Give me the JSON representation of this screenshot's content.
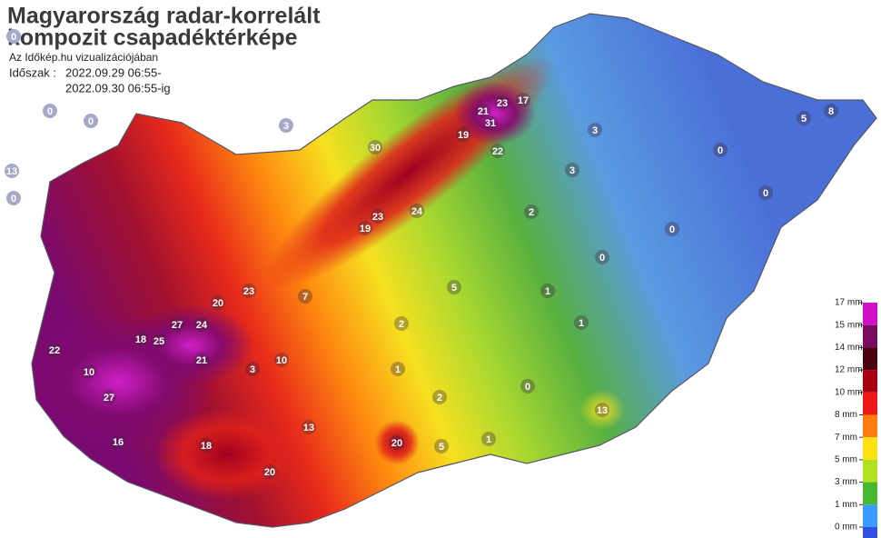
{
  "header": {
    "title_line1": "Magyarország radar-korrelált",
    "title_line2": "kompozit csapadéktérképe",
    "subtitle": "Az Időkép.hu vizualizációjában",
    "period_label": "Időszak :",
    "period_start": "2022.09.29 06:55-",
    "period_end": "2022.09.30 06:55-ig"
  },
  "legend": {
    "items": [
      {
        "label": "17 mm",
        "color": "#d010c8"
      },
      {
        "label": "15 mm",
        "color": "#7a0a60"
      },
      {
        "label": "14 mm",
        "color": "#4a0010"
      },
      {
        "label": "12 mm",
        "color": "#a80010"
      },
      {
        "label": "10 mm",
        "color": "#ee1818"
      },
      {
        "label": "8 mm",
        "color": "#ff7a10"
      },
      {
        "label": "7 mm",
        "color": "#ffe010"
      },
      {
        "label": "5 mm",
        "color": "#b0e020"
      },
      {
        "label": "3 mm",
        "color": "#48b830"
      },
      {
        "label": "1 mm",
        "color": "#3a9cff"
      },
      {
        "label": "0 mm",
        "color": "#2f50e0"
      }
    ]
  },
  "stations": {
    "values": [
      27,
      25,
      27,
      24,
      20,
      23,
      21,
      18,
      20,
      20,
      13,
      31,
      23,
      21,
      17,
      22,
      19,
      30,
      24,
      23,
      19,
      7,
      3,
      10,
      5,
      1,
      2,
      1,
      0,
      1,
      1,
      0,
      0,
      0,
      0,
      8,
      5,
      3,
      3,
      2,
      5,
      2,
      0,
      0,
      0,
      3,
      0,
      22,
      18,
      16,
      13,
      13,
      10
    ]
  }
}
